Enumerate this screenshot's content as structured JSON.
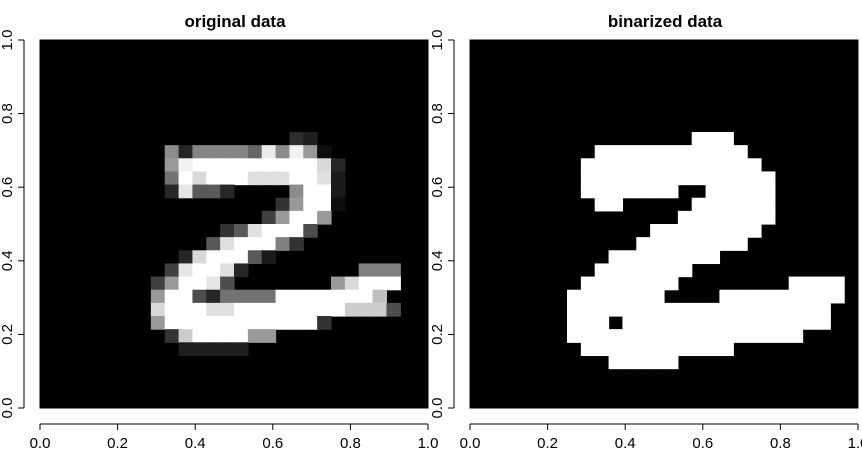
{
  "chart_data": [
    {
      "type": "heatmap",
      "title": "original data",
      "colormap": "grayscale",
      "xlim": [
        0,
        1
      ],
      "ylim": [
        0,
        1
      ],
      "x_ticks": [
        "0.0",
        "0.2",
        "0.4",
        "0.6",
        "0.8",
        "1.0"
      ],
      "y_ticks": [
        "0.0",
        "0.2",
        "0.4",
        "0.6",
        "0.8",
        "1.0"
      ],
      "rows": 28,
      "cols": 28,
      "grid": false,
      "value_range": [
        0,
        1
      ],
      "note_row_order": "top-to-bottom"
    },
    {
      "type": "heatmap",
      "title": "binarized data",
      "colormap": "binary",
      "xlim": [
        0,
        1
      ],
      "ylim": [
        0,
        1
      ],
      "x_ticks": [
        "0.0",
        "0.2",
        "0.4",
        "0.6",
        "0.8",
        "1.0"
      ],
      "y_ticks": [
        "0.0",
        "0.2",
        "0.4",
        "0.6",
        "0.8",
        "1.0"
      ],
      "rows": 28,
      "cols": 28,
      "grid": false,
      "value_range": [
        0,
        1
      ]
    }
  ],
  "pixels": {
    "original": [
      [
        0,
        0,
        0,
        0,
        0,
        0,
        0,
        0,
        0,
        0,
        0,
        0,
        0,
        0,
        0,
        0,
        0,
        0,
        0,
        0,
        0,
        0,
        0,
        0,
        0,
        0,
        0,
        0
      ],
      [
        0,
        0,
        0,
        0,
        0,
        0,
        0,
        0,
        0,
        0,
        0,
        0,
        0,
        0,
        0,
        0,
        0,
        0,
        0,
        0,
        0,
        0,
        0,
        0,
        0,
        0,
        0,
        0
      ],
      [
        0,
        0,
        0,
        0,
        0,
        0,
        0,
        0,
        0,
        0,
        0,
        0,
        0,
        0,
        0,
        0,
        0,
        0,
        0,
        0,
        0,
        0,
        0,
        0,
        0,
        0,
        0,
        0
      ],
      [
        0,
        0,
        0,
        0,
        0,
        0,
        0,
        0,
        0,
        0,
        0,
        0,
        0,
        0,
        0,
        0,
        0,
        0,
        0,
        0,
        0,
        0,
        0,
        0,
        0,
        0,
        0,
        0
      ],
      [
        0,
        0,
        0,
        0,
        0,
        0,
        0,
        0,
        0,
        0,
        0,
        0,
        0,
        0,
        0,
        0,
        0,
        0,
        0,
        0,
        0,
        0,
        0,
        0,
        0,
        0,
        0,
        0
      ],
      [
        0,
        0,
        0,
        0,
        0,
        0,
        0,
        0,
        0,
        0,
        0,
        0,
        0,
        0,
        0,
        0,
        0,
        0,
        0,
        0,
        0,
        0,
        0,
        0,
        0,
        0,
        0,
        0
      ],
      [
        0,
        0,
        0,
        0,
        0,
        0,
        0,
        0,
        0,
        0,
        0,
        0,
        0,
        0,
        0,
        0,
        0,
        0,
        0,
        0,
        0,
        0,
        0,
        0,
        0,
        0,
        0,
        0
      ],
      [
        0,
        0,
        0,
        0,
        0,
        0,
        0,
        0,
        0,
        0,
        0,
        0,
        0,
        0,
        0,
        0,
        0,
        0,
        0.18,
        0.12,
        0,
        0,
        0,
        0,
        0,
        0,
        0,
        0
      ],
      [
        0,
        0,
        0,
        0,
        0,
        0,
        0,
        0,
        0,
        0.55,
        0.15,
        0.52,
        0.52,
        0.52,
        0.52,
        0.4,
        0.92,
        0.55,
        0.95,
        0.6,
        0.05,
        0,
        0,
        0,
        0,
        0,
        0,
        0
      ],
      [
        0,
        0,
        0,
        0,
        0,
        0,
        0,
        0,
        0,
        0.6,
        0.95,
        1,
        1,
        1,
        1,
        1,
        1,
        1,
        1,
        1,
        0.85,
        0.15,
        0,
        0,
        0,
        0,
        0,
        0
      ],
      [
        0,
        0,
        0,
        0,
        0,
        0,
        0,
        0,
        0,
        0.45,
        1,
        0.85,
        1,
        1,
        1,
        0.88,
        0.88,
        0.88,
        1,
        1,
        0.88,
        0.1,
        0,
        0,
        0,
        0,
        0,
        0
      ],
      [
        0,
        0,
        0,
        0,
        0,
        0,
        0,
        0,
        0,
        0.15,
        0.9,
        0.35,
        0.35,
        0.15,
        0,
        0,
        0,
        0,
        0.55,
        1,
        1,
        0.1,
        0,
        0,
        0,
        0,
        0,
        0
      ],
      [
        0,
        0,
        0,
        0,
        0,
        0,
        0,
        0,
        0,
        0,
        0,
        0,
        0,
        0,
        0,
        0,
        0,
        0.2,
        0.6,
        1,
        1,
        0.05,
        0,
        0,
        0,
        0,
        0,
        0
      ],
      [
        0,
        0,
        0,
        0,
        0,
        0,
        0,
        0,
        0,
        0,
        0,
        0,
        0,
        0,
        0,
        0,
        0.25,
        0.6,
        1,
        1,
        0.6,
        0,
        0,
        0,
        0,
        0,
        0,
        0
      ],
      [
        0,
        0,
        0,
        0,
        0,
        0,
        0,
        0,
        0,
        0,
        0,
        0,
        0,
        0.2,
        0.35,
        0.88,
        1,
        1,
        1,
        0.3,
        0,
        0,
        0,
        0,
        0,
        0,
        0,
        0
      ],
      [
        0,
        0,
        0,
        0,
        0,
        0,
        0,
        0,
        0,
        0,
        0,
        0,
        0.35,
        0.88,
        1,
        1,
        1,
        0.5,
        0.2,
        0,
        0,
        0,
        0,
        0,
        0,
        0,
        0,
        0
      ],
      [
        0,
        0,
        0,
        0,
        0,
        0,
        0,
        0,
        0,
        0,
        0.15,
        0.85,
        1,
        1,
        1,
        0.35,
        0.1,
        0,
        0,
        0,
        0,
        0,
        0,
        0,
        0,
        0,
        0,
        0
      ],
      [
        0,
        0,
        0,
        0,
        0,
        0,
        0,
        0,
        0,
        0.25,
        0.9,
        1,
        1,
        0.88,
        0.15,
        0,
        0,
        0,
        0,
        0,
        0,
        0,
        0,
        0.5,
        0.5,
        0.5,
        0,
        0
      ],
      [
        0,
        0,
        0,
        0,
        0,
        0,
        0,
        0,
        0.25,
        0.6,
        1,
        1,
        0.9,
        0.3,
        0,
        0,
        0,
        0,
        0,
        0,
        0,
        0.6,
        0.85,
        1,
        1,
        1,
        0,
        0
      ],
      [
        0,
        0,
        0,
        0,
        0,
        0,
        0,
        0,
        0.6,
        1,
        1,
        0.3,
        0.15,
        0.45,
        0.45,
        0.45,
        0.45,
        1,
        1,
        1,
        1,
        1,
        1,
        1,
        0.75,
        0,
        0,
        0
      ],
      [
        0,
        0,
        0,
        0,
        0,
        0,
        0,
        0,
        0.85,
        1,
        1,
        1,
        0.88,
        0.88,
        1,
        1,
        1,
        1,
        1,
        1,
        1,
        1,
        0.8,
        0.8,
        0.8,
        0.3,
        0,
        0
      ],
      [
        0,
        0,
        0,
        0,
        0,
        0,
        0,
        0,
        0.6,
        1,
        1,
        1,
        1,
        1,
        1,
        1,
        1,
        1,
        1,
        1,
        0.2,
        0,
        0,
        0,
        0,
        0,
        0,
        0
      ],
      [
        0,
        0,
        0,
        0,
        0,
        0,
        0,
        0,
        0,
        0.2,
        0.8,
        1,
        1,
        1,
        1,
        0.6,
        0.6,
        0,
        0,
        0,
        0,
        0,
        0,
        0,
        0,
        0,
        0,
        0
      ],
      [
        0,
        0,
        0,
        0,
        0,
        0,
        0,
        0,
        0,
        0,
        0.12,
        0.12,
        0.12,
        0.12,
        0.12,
        0,
        0,
        0,
        0,
        0,
        0,
        0,
        0,
        0,
        0,
        0,
        0,
        0
      ],
      [
        0,
        0,
        0,
        0,
        0,
        0,
        0,
        0,
        0,
        0,
        0,
        0,
        0,
        0,
        0,
        0,
        0,
        0,
        0,
        0,
        0,
        0,
        0,
        0,
        0,
        0,
        0,
        0
      ],
      [
        0,
        0,
        0,
        0,
        0,
        0,
        0,
        0,
        0,
        0,
        0,
        0,
        0,
        0,
        0,
        0,
        0,
        0,
        0,
        0,
        0,
        0,
        0,
        0,
        0,
        0,
        0,
        0
      ],
      [
        0,
        0,
        0,
        0,
        0,
        0,
        0,
        0,
        0,
        0,
        0,
        0,
        0,
        0,
        0,
        0,
        0,
        0,
        0,
        0,
        0,
        0,
        0,
        0,
        0,
        0,
        0,
        0
      ],
      [
        0,
        0,
        0,
        0,
        0,
        0,
        0,
        0,
        0,
        0,
        0,
        0,
        0,
        0,
        0,
        0,
        0,
        0,
        0,
        0,
        0,
        0,
        0,
        0,
        0,
        0,
        0,
        0
      ]
    ],
    "binarized": [
      [
        0,
        0,
        0,
        0,
        0,
        0,
        0,
        0,
        0,
        0,
        0,
        0,
        0,
        0,
        0,
        0,
        0,
        0,
        0,
        0,
        0,
        0,
        0,
        0,
        0,
        0,
        0,
        0
      ],
      [
        0,
        0,
        0,
        0,
        0,
        0,
        0,
        0,
        0,
        0,
        0,
        0,
        0,
        0,
        0,
        0,
        0,
        0,
        0,
        0,
        0,
        0,
        0,
        0,
        0,
        0,
        0,
        0
      ],
      [
        0,
        0,
        0,
        0,
        0,
        0,
        0,
        0,
        0,
        0,
        0,
        0,
        0,
        0,
        0,
        0,
        0,
        0,
        0,
        0,
        0,
        0,
        0,
        0,
        0,
        0,
        0,
        0
      ],
      [
        0,
        0,
        0,
        0,
        0,
        0,
        0,
        0,
        0,
        0,
        0,
        0,
        0,
        0,
        0,
        0,
        0,
        0,
        0,
        0,
        0,
        0,
        0,
        0,
        0,
        0,
        0,
        0
      ],
      [
        0,
        0,
        0,
        0,
        0,
        0,
        0,
        0,
        0,
        0,
        0,
        0,
        0,
        0,
        0,
        0,
        0,
        0,
        0,
        0,
        0,
        0,
        0,
        0,
        0,
        0,
        0,
        0
      ],
      [
        0,
        0,
        0,
        0,
        0,
        0,
        0,
        0,
        0,
        0,
        0,
        0,
        0,
        0,
        0,
        0,
        0,
        0,
        0,
        0,
        0,
        0,
        0,
        0,
        0,
        0,
        0,
        0
      ],
      [
        0,
        0,
        0,
        0,
        0,
        0,
        0,
        0,
        0,
        0,
        0,
        0,
        0,
        0,
        0,
        0,
        0,
        0,
        0,
        0,
        0,
        0,
        0,
        0,
        0,
        0,
        0,
        0
      ],
      [
        0,
        0,
        0,
        0,
        0,
        0,
        0,
        0,
        0,
        0,
        0,
        0,
        0,
        0,
        0,
        0,
        1,
        1,
        1,
        0,
        0,
        0,
        0,
        0,
        0,
        0,
        0,
        0
      ],
      [
        0,
        0,
        0,
        0,
        0,
        0,
        0,
        0,
        0,
        1,
        1,
        1,
        1,
        1,
        1,
        1,
        1,
        1,
        1,
        1,
        0,
        0,
        0,
        0,
        0,
        0,
        0,
        0
      ],
      [
        0,
        0,
        0,
        0,
        0,
        0,
        0,
        0,
        1,
        1,
        1,
        1,
        1,
        1,
        1,
        1,
        1,
        1,
        1,
        1,
        1,
        0,
        0,
        0,
        0,
        0,
        0,
        0
      ],
      [
        0,
        0,
        0,
        0,
        0,
        0,
        0,
        0,
        1,
        1,
        1,
        1,
        1,
        1,
        1,
        1,
        1,
        1,
        1,
        1,
        1,
        1,
        0,
        0,
        0,
        0,
        0,
        0
      ],
      [
        0,
        0,
        0,
        0,
        0,
        0,
        0,
        0,
        1,
        1,
        1,
        1,
        1,
        1,
        1,
        0,
        0,
        1,
        1,
        1,
        1,
        1,
        0,
        0,
        0,
        0,
        0,
        0
      ],
      [
        0,
        0,
        0,
        0,
        0,
        0,
        0,
        0,
        0,
        1,
        1,
        0,
        0,
        0,
        0,
        0,
        1,
        1,
        1,
        1,
        1,
        1,
        0,
        0,
        0,
        0,
        0,
        0
      ],
      [
        0,
        0,
        0,
        0,
        0,
        0,
        0,
        0,
        0,
        0,
        0,
        0,
        0,
        0,
        0,
        1,
        1,
        1,
        1,
        1,
        1,
        1,
        0,
        0,
        0,
        0,
        0,
        0
      ],
      [
        0,
        0,
        0,
        0,
        0,
        0,
        0,
        0,
        0,
        0,
        0,
        0,
        0,
        1,
        1,
        1,
        1,
        1,
        1,
        1,
        1,
        0,
        0,
        0,
        0,
        0,
        0,
        0
      ],
      [
        0,
        0,
        0,
        0,
        0,
        0,
        0,
        0,
        0,
        0,
        0,
        0,
        1,
        1,
        1,
        1,
        1,
        1,
        1,
        1,
        0,
        0,
        0,
        0,
        0,
        0,
        0,
        0
      ],
      [
        0,
        0,
        0,
        0,
        0,
        0,
        0,
        0,
        0,
        0,
        1,
        1,
        1,
        1,
        1,
        1,
        1,
        1,
        0,
        0,
        0,
        0,
        0,
        0,
        0,
        0,
        0,
        0
      ],
      [
        0,
        0,
        0,
        0,
        0,
        0,
        0,
        0,
        0,
        1,
        1,
        1,
        1,
        1,
        1,
        1,
        0,
        0,
        0,
        0,
        0,
        0,
        0,
        0,
        0,
        0,
        0,
        0
      ],
      [
        0,
        0,
        0,
        0,
        0,
        0,
        0,
        0,
        1,
        1,
        1,
        1,
        1,
        1,
        1,
        0,
        0,
        0,
        0,
        0,
        0,
        0,
        0,
        1,
        1,
        1,
        1,
        0
      ],
      [
        0,
        0,
        0,
        0,
        0,
        0,
        0,
        1,
        1,
        1,
        1,
        1,
        1,
        1,
        0,
        0,
        0,
        0,
        1,
        1,
        1,
        1,
        1,
        1,
        1,
        1,
        1,
        0
      ],
      [
        0,
        0,
        0,
        0,
        0,
        0,
        0,
        1,
        1,
        1,
        1,
        1,
        1,
        1,
        1,
        1,
        1,
        1,
        1,
        1,
        1,
        1,
        1,
        1,
        1,
        1,
        0,
        0
      ],
      [
        0,
        0,
        0,
        0,
        0,
        0,
        0,
        1,
        1,
        1,
        0,
        1,
        1,
        1,
        1,
        1,
        1,
        1,
        1,
        1,
        1,
        1,
        1,
        1,
        1,
        1,
        0,
        0
      ],
      [
        0,
        0,
        0,
        0,
        0,
        0,
        0,
        1,
        1,
        1,
        1,
        1,
        1,
        1,
        1,
        1,
        1,
        1,
        1,
        1,
        1,
        1,
        1,
        1,
        0,
        0,
        0,
        0
      ],
      [
        0,
        0,
        0,
        0,
        0,
        0,
        0,
        0,
        1,
        1,
        1,
        1,
        1,
        1,
        1,
        1,
        1,
        1,
        1,
        0,
        0,
        0,
        0,
        0,
        0,
        0,
        0,
        0
      ],
      [
        0,
        0,
        0,
        0,
        0,
        0,
        0,
        0,
        0,
        0,
        1,
        1,
        1,
        1,
        1,
        0,
        0,
        0,
        0,
        0,
        0,
        0,
        0,
        0,
        0,
        0,
        0,
        0
      ],
      [
        0,
        0,
        0,
        0,
        0,
        0,
        0,
        0,
        0,
        0,
        0,
        0,
        0,
        0,
        0,
        0,
        0,
        0,
        0,
        0,
        0,
        0,
        0,
        0,
        0,
        0,
        0,
        0
      ],
      [
        0,
        0,
        0,
        0,
        0,
        0,
        0,
        0,
        0,
        0,
        0,
        0,
        0,
        0,
        0,
        0,
        0,
        0,
        0,
        0,
        0,
        0,
        0,
        0,
        0,
        0,
        0,
        0
      ],
      [
        0,
        0,
        0,
        0,
        0,
        0,
        0,
        0,
        0,
        0,
        0,
        0,
        0,
        0,
        0,
        0,
        0,
        0,
        0,
        0,
        0,
        0,
        0,
        0,
        0,
        0,
        0,
        0
      ]
    ]
  }
}
